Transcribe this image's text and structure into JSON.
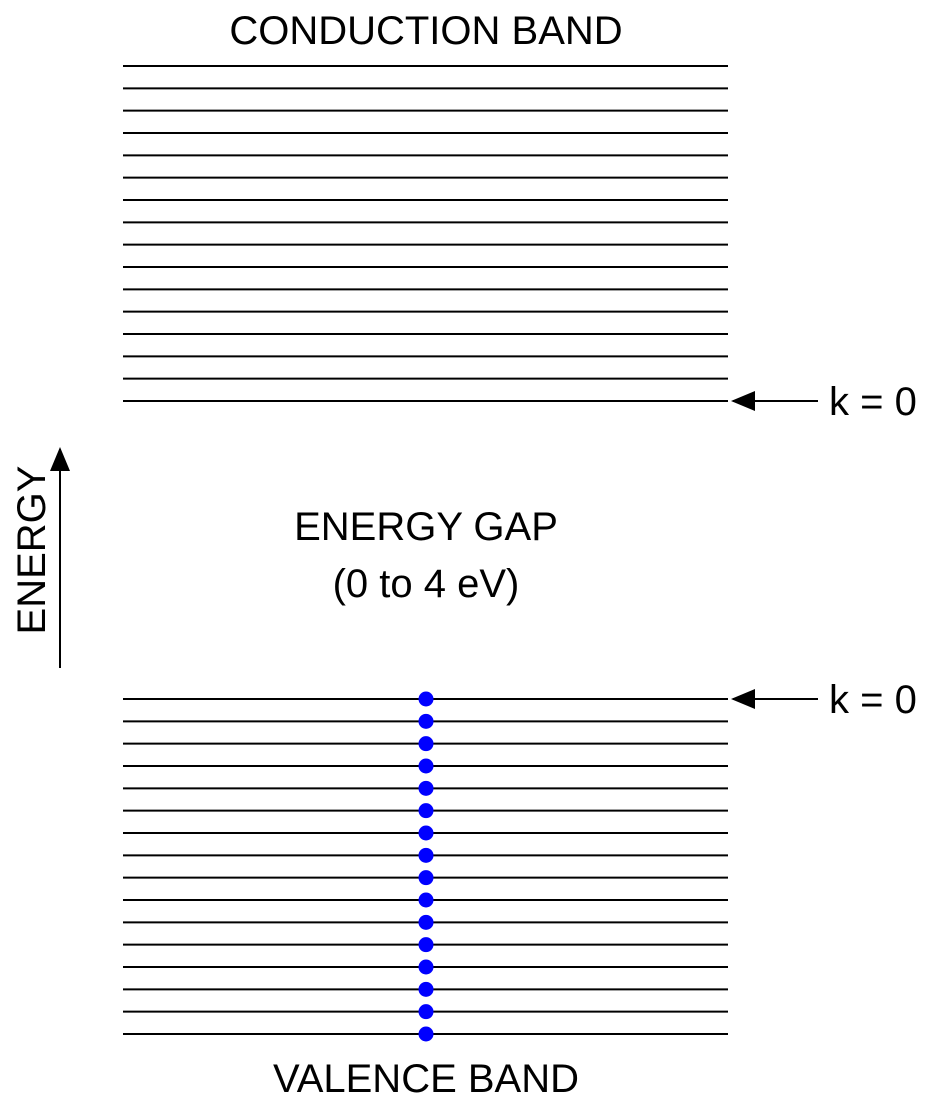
{
  "title_conduction": "CONDUCTION BAND",
  "title_valence": "VALENCE BAND",
  "gap_label": "ENERGY GAP",
  "gap_range": "(0 to 4 eV)",
  "energy_axis_label": "ENERGY",
  "k_label_top": "k = 0",
  "k_label_bottom": "k = 0",
  "conduction_band_levels": 16,
  "valence_band_levels": 16,
  "valence_electrons_filled": 16,
  "colors": {
    "lines": "#000000",
    "electron": "#0000ff",
    "background": "#ffffff"
  }
}
